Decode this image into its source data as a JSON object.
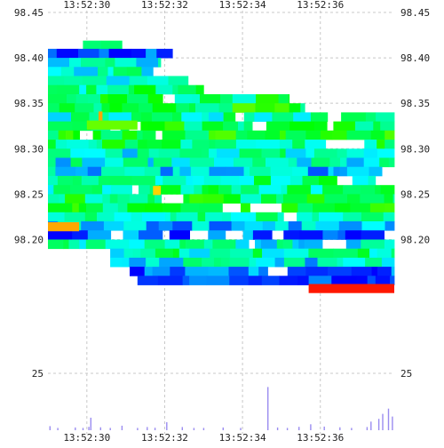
{
  "chart_data": {
    "type": "heatmap",
    "subtype": "order-book depth heatmap with volume histogram",
    "title": "",
    "xlabel": "",
    "ylabel": "",
    "grid": true,
    "x_ticks": [
      "13:52:30",
      "13:52:32",
      "13:52:34",
      "13:52:36"
    ],
    "x_range": [
      "13:52:29.0",
      "13:52:37.9"
    ],
    "y_ticks": [
      "98.45",
      "98.40",
      "98.35",
      "98.30",
      "98.25",
      "98.20"
    ],
    "ylim": [
      98.1525,
      98.45
    ],
    "volume_tick": "25",
    "volume_ylim": [
      0,
      25
    ],
    "colors": {
      "grid": "#c8c8c8",
      "volume_bar": "#9a8cf0",
      "scale_low": "#0000ff",
      "scale_mid_low": "#00ffff",
      "scale_mid": "#00ff00",
      "scale_mid_high": "#ffff00",
      "scale_high": "#ff0000"
    },
    "bands": [
      {
        "price": 98.414,
        "t0": 29.9,
        "t1": 30.9,
        "intensity": 0.35
      },
      {
        "price": 98.405,
        "t0": 29.0,
        "t1": 32.2,
        "intensity": 0.05
      },
      {
        "price": 98.395,
        "t0": 29.0,
        "t1": 31.9,
        "intensity": 0.28
      },
      {
        "price": 98.385,
        "t0": 29.0,
        "t1": 31.7,
        "intensity": 0.32
      },
      {
        "price": 98.375,
        "t0": 29.0,
        "t1": 32.6,
        "intensity": 0.34
      },
      {
        "price": 98.365,
        "t0": 29.0,
        "t1": 33.0,
        "intensity": 0.36
      },
      {
        "price": 98.355,
        "t0": 29.0,
        "t1": 35.2,
        "intensity": 0.4
      },
      {
        "price": 98.345,
        "t0": 29.0,
        "t1": 35.6,
        "intensity": 0.46
      },
      {
        "price": 98.335,
        "t0": 29.0,
        "t1": 37.9,
        "intensity": 0.34
      },
      {
        "price": 98.325,
        "t0": 29.0,
        "t1": 37.9,
        "intensity": 0.42
      },
      {
        "price": 98.315,
        "t0": 29.0,
        "t1": 37.9,
        "intensity": 0.45
      },
      {
        "price": 98.305,
        "t0": 29.0,
        "t1": 37.9,
        "intensity": 0.4
      },
      {
        "price": 98.295,
        "t0": 29.0,
        "t1": 37.9,
        "intensity": 0.3
      },
      {
        "price": 98.285,
        "t0": 29.0,
        "t1": 37.9,
        "intensity": 0.28
      },
      {
        "price": 98.275,
        "t0": 29.0,
        "t1": 37.9,
        "intensity": 0.22
      },
      {
        "price": 98.265,
        "t0": 29.0,
        "t1": 37.9,
        "intensity": 0.38
      },
      {
        "price": 98.255,
        "t0": 29.0,
        "t1": 37.9,
        "intensity": 0.35
      },
      {
        "price": 98.245,
        "t0": 29.0,
        "t1": 37.9,
        "intensity": 0.42
      },
      {
        "price": 98.235,
        "t0": 29.0,
        "t1": 37.9,
        "intensity": 0.44
      },
      {
        "price": 98.225,
        "t0": 29.0,
        "t1": 37.9,
        "intensity": 0.32
      },
      {
        "price": 98.215,
        "t0": 29.0,
        "t1": 37.9,
        "intensity": 0.2
      },
      {
        "price": 98.205,
        "t0": 29.0,
        "t1": 37.9,
        "intensity": 0.08
      },
      {
        "price": 98.195,
        "t0": 29.0,
        "t1": 37.9,
        "intensity": 0.3
      },
      {
        "price": 98.185,
        "t0": 30.6,
        "t1": 37.9,
        "intensity": 0.34
      },
      {
        "price": 98.175,
        "t0": 30.6,
        "t1": 37.9,
        "intensity": 0.26
      },
      {
        "price": 98.165,
        "t0": 31.1,
        "t1": 37.9,
        "intensity": 0.1
      },
      {
        "price": 98.155,
        "t0": 31.3,
        "t1": 37.9,
        "intensity": 0.05
      }
    ],
    "highlights": [
      {
        "price": 98.214,
        "t0": 29.0,
        "t1": 29.8,
        "intensity": 0.85
      },
      {
        "price": 98.146,
        "t0": 35.7,
        "t1": 37.9,
        "intensity": 0.98
      },
      {
        "price": 98.254,
        "t0": 31.7,
        "t1": 31.9,
        "intensity": 0.8
      },
      {
        "price": 98.336,
        "t0": 30.3,
        "t1": 30.4,
        "intensity": 0.85
      },
      {
        "price": 98.326,
        "t0": 30.0,
        "t1": 31.3,
        "intensity": 0.6
      }
    ],
    "volume": [
      {
        "t": 29.05,
        "v": 1.8
      },
      {
        "t": 29.25,
        "v": 1.0
      },
      {
        "t": 29.7,
        "v": 1.2
      },
      {
        "t": 29.9,
        "v": 1.0
      },
      {
        "t": 30.05,
        "v": 1.5
      },
      {
        "t": 30.1,
        "v": 5.5
      },
      {
        "t": 30.35,
        "v": 1.3
      },
      {
        "t": 30.6,
        "v": 1.0
      },
      {
        "t": 30.9,
        "v": 2.0
      },
      {
        "t": 31.3,
        "v": 1.0
      },
      {
        "t": 31.55,
        "v": 1.4
      },
      {
        "t": 31.75,
        "v": 1.1
      },
      {
        "t": 32.05,
        "v": 3.5
      },
      {
        "t": 32.45,
        "v": 1.4
      },
      {
        "t": 32.75,
        "v": 1.0
      },
      {
        "t": 33.0,
        "v": 1.0
      },
      {
        "t": 33.5,
        "v": 1.2
      },
      {
        "t": 33.95,
        "v": 1.0
      },
      {
        "t": 34.65,
        "v": 19.0
      },
      {
        "t": 34.9,
        "v": 1.2
      },
      {
        "t": 35.15,
        "v": 1.0
      },
      {
        "t": 35.45,
        "v": 1.5
      },
      {
        "t": 35.75,
        "v": 2.6
      },
      {
        "t": 36.1,
        "v": 1.6
      },
      {
        "t": 36.5,
        "v": 1.3
      },
      {
        "t": 36.8,
        "v": 1.0
      },
      {
        "t": 37.2,
        "v": 1.4
      },
      {
        "t": 37.3,
        "v": 3.8
      },
      {
        "t": 37.5,
        "v": 5.0
      },
      {
        "t": 37.6,
        "v": 7.2
      },
      {
        "t": 37.75,
        "v": 9.5
      },
      {
        "t": 37.85,
        "v": 6.0
      }
    ]
  }
}
